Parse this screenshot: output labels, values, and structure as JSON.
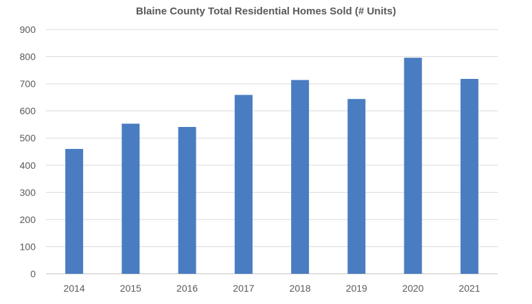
{
  "chart_data": {
    "type": "bar",
    "title": "Blaine County Total Residential Homes Sold (# Units)",
    "categories": [
      "2014",
      "2015",
      "2016",
      "2017",
      "2018",
      "2019",
      "2020",
      "2021"
    ],
    "values": [
      460,
      553,
      541,
      659,
      714,
      644,
      796,
      718
    ],
    "ylim": [
      0,
      900
    ],
    "yticks": [
      0,
      100,
      200,
      300,
      400,
      500,
      600,
      700,
      800,
      900
    ],
    "xlabel": "",
    "ylabel": "",
    "grid": true,
    "legend": "none",
    "colors": {
      "bar": "#4a7cc1",
      "grid": "#d9d9d9",
      "axis": "#bfbfbf",
      "text": "#595959"
    }
  }
}
